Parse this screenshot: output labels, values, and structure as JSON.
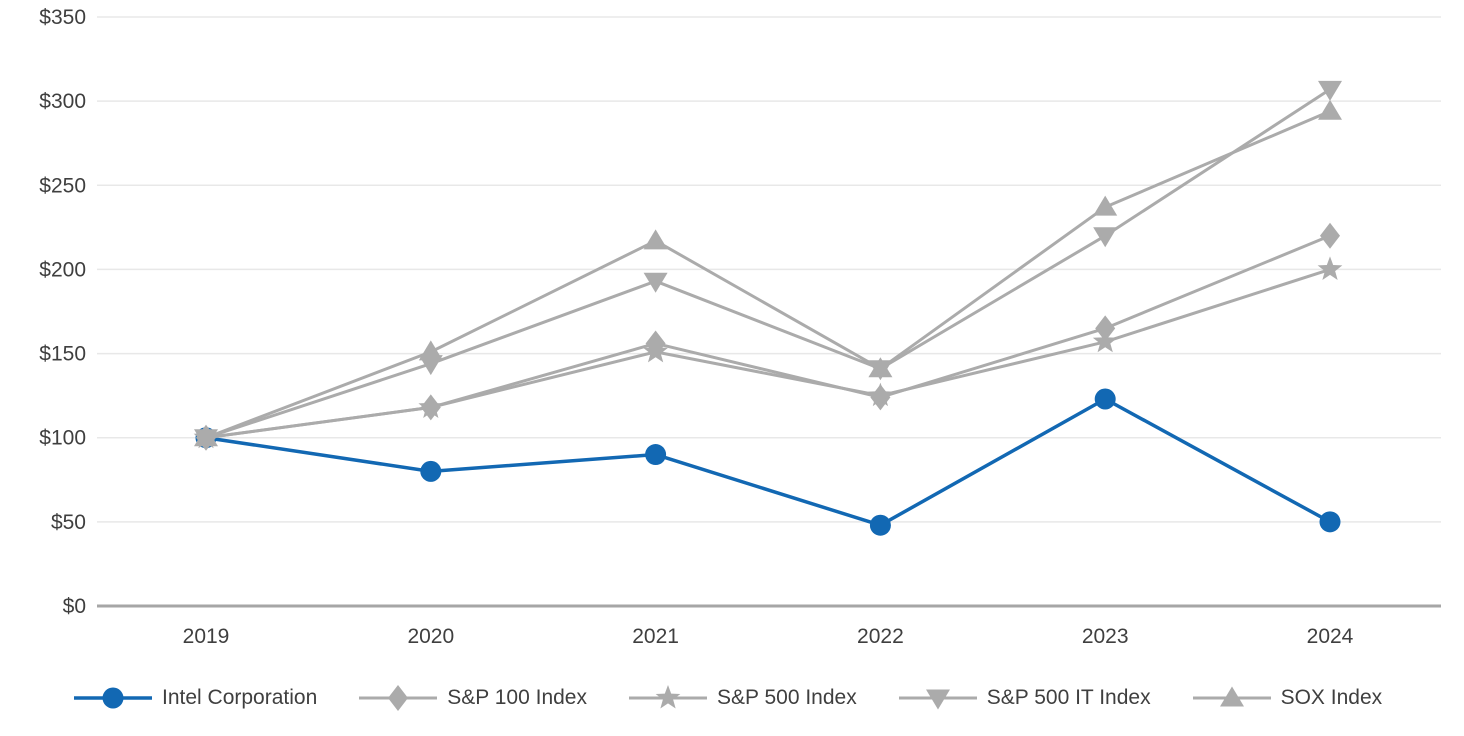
{
  "chart_data": {
    "type": "line",
    "title": "",
    "categories": [
      "2019",
      "2020",
      "2021",
      "2022",
      "2023",
      "2024"
    ],
    "series": [
      {
        "name": "Intel Corporation",
        "marker": "circle",
        "color": "#1268b3",
        "values": [
          100,
          80,
          90,
          48,
          123,
          50
        ]
      },
      {
        "name": "S&P 100 Index",
        "marker": "diamond",
        "color": "#ababab",
        "values": [
          100,
          118,
          156,
          124,
          165,
          220
        ]
      },
      {
        "name": "S&P 500 Index",
        "marker": "star",
        "color": "#ababab",
        "values": [
          100,
          118,
          151,
          125,
          157,
          200
        ]
      },
      {
        "name": "S&P 500 IT Index",
        "marker": "triangle-down",
        "color": "#ababab",
        "values": [
          100,
          144,
          193,
          141,
          220,
          307
        ]
      },
      {
        "name": "SOX Index",
        "marker": "triangle-up",
        "color": "#ababab",
        "values": [
          100,
          151,
          217,
          141,
          237,
          294
        ]
      }
    ],
    "y_ticks": [
      "$0",
      "$50",
      "$100",
      "$150",
      "$200",
      "$250",
      "$300",
      "$350"
    ],
    "ylim": [
      0,
      350
    ],
    "y_tick_step": 50,
    "grid": true,
    "legend_position": "bottom"
  },
  "colors": {
    "gridline": "#e8e8e8",
    "axis_line": "#a6a6a6",
    "text": "#3f3f3f",
    "accent_blue": "#1268b3",
    "series_gray": "#ababab"
  }
}
